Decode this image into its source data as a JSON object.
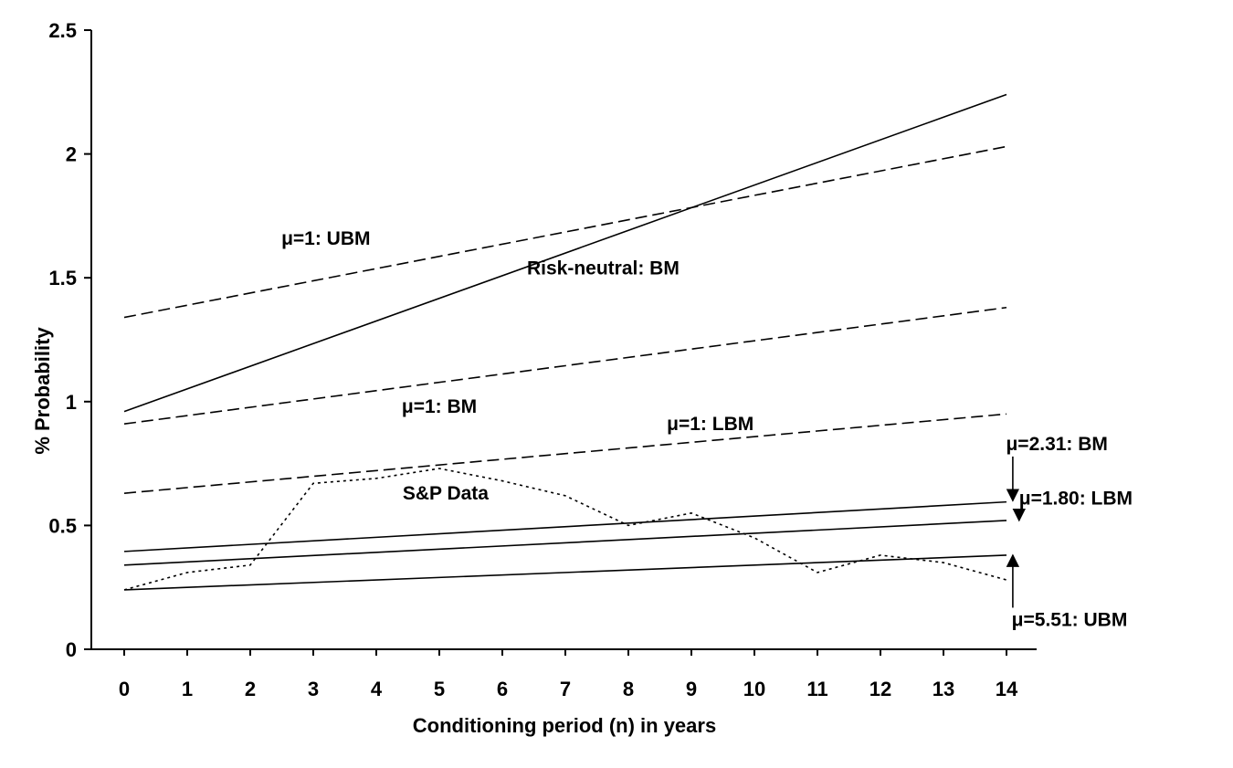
{
  "chart_data": {
    "type": "line",
    "xlabel": "Conditioning period (n) in years",
    "ylabel": "% Probability",
    "xlim": [
      0,
      14
    ],
    "ylim": [
      0,
      2.5
    ],
    "x_ticks": [
      0,
      1,
      2,
      3,
      4,
      5,
      6,
      7,
      8,
      9,
      10,
      11,
      12,
      13,
      14
    ],
    "y_ticks": [
      0,
      0.5,
      1,
      1.5,
      2,
      2.5
    ],
    "y_tick_labels": [
      "0",
      "0.5",
      "1",
      "1.5",
      "2",
      "2.5"
    ],
    "grid": false,
    "series": [
      {
        "style": "solid",
        "x": [
          0,
          14
        ],
        "y": [
          0.96,
          2.24
        ]
      },
      {
        "style": "dashed",
        "x": [
          0,
          14
        ],
        "y": [
          1.34,
          2.03
        ]
      },
      {
        "style": "dashed",
        "x": [
          0,
          14
        ],
        "y": [
          0.91,
          1.38
        ]
      },
      {
        "style": "dashed",
        "x": [
          0,
          14
        ],
        "y": [
          0.63,
          0.95
        ]
      },
      {
        "style": "solid",
        "x": [
          0,
          14
        ],
        "y": [
          0.395,
          0.595
        ]
      },
      {
        "style": "solid",
        "x": [
          0,
          14
        ],
        "y": [
          0.34,
          0.52
        ]
      },
      {
        "style": "solid",
        "x": [
          0,
          14
        ],
        "y": [
          0.24,
          0.38
        ]
      },
      {
        "style": "dotted",
        "x": [
          0,
          1,
          2,
          3,
          4,
          5,
          6,
          7,
          8,
          9,
          10,
          11,
          12,
          13,
          14
        ],
        "y": [
          0.24,
          0.31,
          0.34,
          0.67,
          0.69,
          0.73,
          0.68,
          0.62,
          0.5,
          0.55,
          0.45,
          0.31,
          0.38,
          0.35,
          0.28
        ]
      }
    ],
    "annotations": [
      {
        "text": "μ=1: UBM",
        "x": 3.2,
        "y": 1.66
      },
      {
        "text": "Risk-neutral: BM",
        "x": 7.6,
        "y": 1.54
      },
      {
        "text": "μ=1: BM",
        "x": 5.0,
        "y": 0.98
      },
      {
        "text": "μ=1: LBM",
        "x": 9.3,
        "y": 0.91
      },
      {
        "text": "S&P Data",
        "x": 5.1,
        "y": 0.63
      },
      {
        "text": "μ=2.31: BM",
        "x": 14.8,
        "y": 0.83,
        "arrow_to": [
          14.1,
          0.6
        ]
      },
      {
        "text": "μ=1.80: LBM",
        "x": 15.1,
        "y": 0.61,
        "arrow_to": [
          14.2,
          0.52
        ]
      },
      {
        "text": "μ=5.51: UBM",
        "x": 15.0,
        "y": 0.12,
        "arrow_to": [
          14.1,
          0.38
        ]
      }
    ]
  }
}
